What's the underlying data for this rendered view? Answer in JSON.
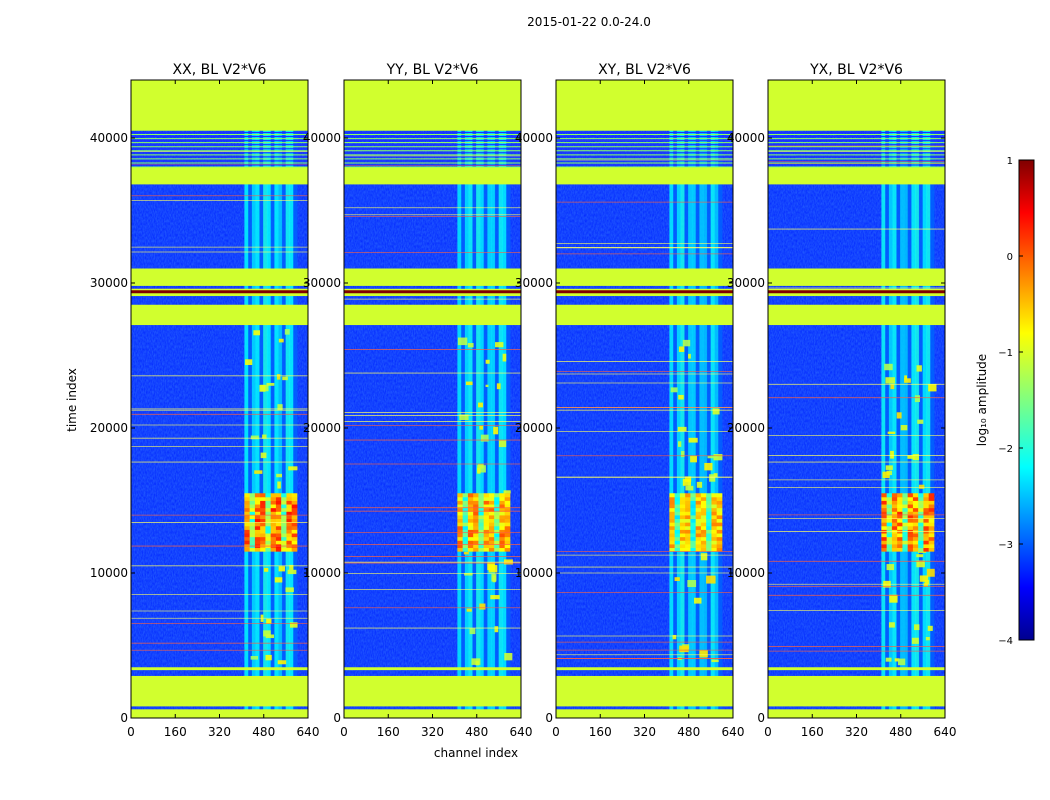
{
  "figure": {
    "suptitle": "2015-01-22 0.0-24.0",
    "xlabel": "channel index",
    "ylabel": "time index",
    "colorbar_label": "log₁₀ amplitude"
  },
  "chart_data": {
    "type": "heatmap",
    "panels": [
      {
        "title": "XX, BL V2*V6",
        "pol": "XX"
      },
      {
        "title": "YY, BL V2*V6",
        "pol": "YY"
      },
      {
        "title": "XY, BL V2*V6",
        "pol": "XY"
      },
      {
        "title": "YX, BL V2*V6",
        "pol": "YX"
      }
    ],
    "x_range": [
      0,
      640
    ],
    "y_range": [
      0,
      44000
    ],
    "x_ticks": [
      0,
      160,
      320,
      480,
      640
    ],
    "x_tick_labels": [
      "0",
      "160",
      "320",
      "480",
      "640"
    ],
    "y_ticks": [
      0,
      10000,
      20000,
      30000,
      40000
    ],
    "y_tick_labels": [
      "0",
      "10000",
      "20000",
      "30000",
      "40000"
    ],
    "colorbar": {
      "range": [
        -4,
        1
      ],
      "ticks": [
        1,
        0,
        -1,
        -2,
        -3,
        -4
      ],
      "tick_labels": [
        "1",
        "0",
        "−1",
        "−2",
        "−3",
        "−4"
      ],
      "colormap": "jet"
    },
    "flagged_value": -1.1,
    "flagged_time_blocks": [
      [
        0,
        600
      ],
      [
        800,
        2900
      ],
      [
        3300,
        3500
      ],
      [
        36800,
        38000
      ],
      [
        40500,
        44000
      ],
      [
        27100,
        28500
      ],
      [
        29100,
        29600
      ],
      [
        29800,
        31000
      ]
    ],
    "rfi_channel_band": [
      410,
      600
    ],
    "emission_time_band": [
      11500,
      15500
    ],
    "emission_channel_band": [
      410,
      600
    ]
  }
}
